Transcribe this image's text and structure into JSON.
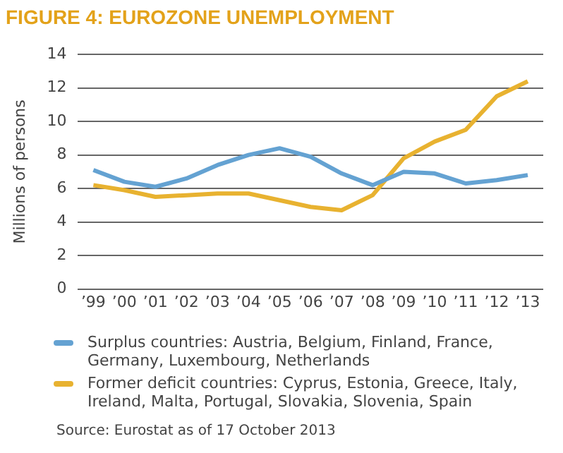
{
  "chart_data": {
    "type": "line",
    "title": "FIGURE 4: EUROZONE UNEMPLOYMENT",
    "ylabel": "Millions of persons",
    "categories": [
      "’99",
      "’00",
      "’01",
      "’02",
      "’03",
      "’04",
      "’05",
      "’06",
      "’07",
      "’08",
      "’09",
      "’10",
      "’11",
      "’12",
      "’13"
    ],
    "series": [
      {
        "name": "Surplus countries: Austria, Belgium, Finland, France, Germany, Luxembourg, Netherlands",
        "color": "#64a2d2",
        "values": [
          7.1,
          6.4,
          6.1,
          6.6,
          7.4,
          8.0,
          8.4,
          7.9,
          6.9,
          6.2,
          7.0,
          6.9,
          6.3,
          6.5,
          6.8
        ]
      },
      {
        "name": "Former deficit countries: Cyprus, Estonia, Greece, Italy, Ireland, Malta, Portugal, Slovakia, Slovenia, Spain",
        "color": "#e8b230",
        "values": [
          6.2,
          5.9,
          5.5,
          5.6,
          5.7,
          5.7,
          5.3,
          4.9,
          4.7,
          5.6,
          7.8,
          8.8,
          9.5,
          11.5,
          12.4
        ]
      }
    ],
    "ylim": [
      0,
      14
    ],
    "yticks": [
      0,
      2,
      4,
      6,
      8,
      10,
      12,
      14
    ],
    "grid": "y",
    "legend": "bottom",
    "marker": "none",
    "line_style": "solid",
    "annotations": [
      "Source: Eurostat as of 17 October 2013"
    ]
  }
}
